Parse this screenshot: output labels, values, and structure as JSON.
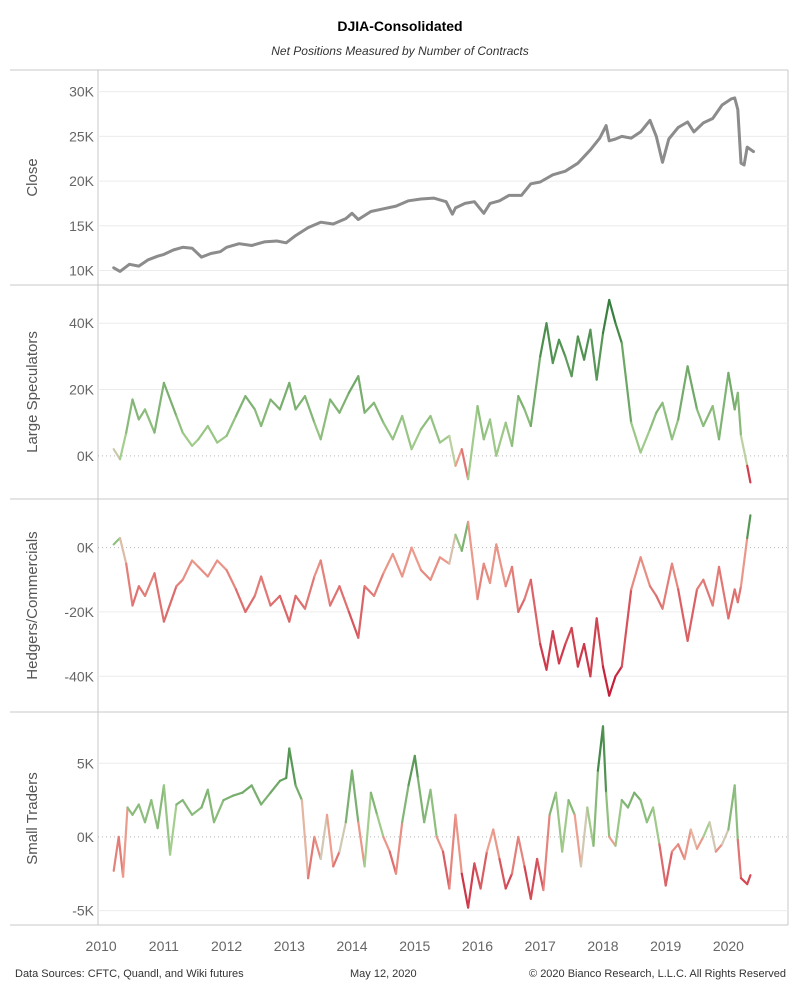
{
  "title": "DJIA-Consolidated",
  "subtitle": "Net Positions Measured by Number of Contracts",
  "footer": {
    "sources": "Data Sources: CFTC, Quandl, and Wiki futures",
    "date": "May 12, 2020",
    "copyright": "© 2020 Bianco Research, L.L.C. All Rights Reserved"
  },
  "x_axis": {
    "labels": [
      "2010",
      "2011",
      "2012",
      "2013",
      "2014",
      "2015",
      "2016",
      "2017",
      "2018",
      "2019",
      "2020"
    ],
    "values": [
      2010,
      2011,
      2012,
      2013,
      2014,
      2015,
      2016,
      2017,
      2018,
      2019,
      2020
    ],
    "range": [
      2009.95,
      2020.95
    ]
  },
  "chart_data": [
    {
      "type": "line",
      "ylabel": "Close",
      "ylim": [
        9500,
        31300
      ],
      "yticks": [
        10000,
        15000,
        20000,
        25000,
        30000
      ],
      "yticklabels": [
        "10K",
        "15K",
        "20K",
        "25K",
        "30K"
      ],
      "color": "#8c8c8c",
      "x": [
        2010.2,
        2010.3,
        2010.45,
        2010.6,
        2010.75,
        2010.9,
        2011.0,
        2011.15,
        2011.3,
        2011.45,
        2011.6,
        2011.75,
        2011.9,
        2012.0,
        2012.2,
        2012.4,
        2012.6,
        2012.8,
        2012.95,
        2013.1,
        2013.3,
        2013.5,
        2013.7,
        2013.9,
        2014.0,
        2014.1,
        2014.3,
        2014.5,
        2014.7,
        2014.9,
        2015.1,
        2015.3,
        2015.5,
        2015.6,
        2015.65,
        2015.8,
        2015.95,
        2016.1,
        2016.2,
        2016.35,
        2016.5,
        2016.7,
        2016.85,
        2017.0,
        2017.2,
        2017.4,
        2017.6,
        2017.8,
        2017.95,
        2018.05,
        2018.1,
        2018.2,
        2018.3,
        2018.45,
        2018.6,
        2018.75,
        2018.85,
        2018.95,
        2019.05,
        2019.2,
        2019.35,
        2019.45,
        2019.6,
        2019.75,
        2019.9,
        2020.05,
        2020.1,
        2020.15,
        2020.2,
        2020.25,
        2020.3,
        2020.4
      ],
      "values": [
        10300,
        9900,
        10700,
        10500,
        11200,
        11600,
        11800,
        12300,
        12600,
        12500,
        11500,
        11900,
        12100,
        12600,
        13000,
        12800,
        13200,
        13300,
        13100,
        13900,
        14800,
        15400,
        15200,
        15800,
        16400,
        15700,
        16600,
        16900,
        17200,
        17800,
        18000,
        18100,
        17700,
        16300,
        17000,
        17500,
        17700,
        16400,
        17500,
        17800,
        18400,
        18400,
        19700,
        19900,
        20700,
        21100,
        22000,
        23500,
        24800,
        26200,
        24500,
        24700,
        25000,
        24800,
        25500,
        26800,
        25000,
        22100,
        24700,
        26000,
        26600,
        25500,
        26500,
        27000,
        28500,
        29200,
        29300,
        28000,
        22000,
        21800,
        23800,
        23300
      ]
    },
    {
      "type": "line",
      "ylabel": "Large Speculators",
      "ylim": [
        -10000,
        48500
      ],
      "yticks": [
        0,
        20000,
        40000
      ],
      "yticklabels": [
        "0K",
        "20K",
        "40K"
      ],
      "x": [
        2010.2,
        2010.3,
        2010.4,
        2010.5,
        2010.6,
        2010.7,
        2010.85,
        2011.0,
        2011.2,
        2011.3,
        2011.45,
        2011.55,
        2011.7,
        2011.85,
        2012.0,
        2012.15,
        2012.3,
        2012.45,
        2012.55,
        2012.7,
        2012.85,
        2013.0,
        2013.1,
        2013.25,
        2013.4,
        2013.5,
        2013.65,
        2013.8,
        2013.95,
        2014.1,
        2014.2,
        2014.35,
        2014.5,
        2014.65,
        2014.8,
        2014.95,
        2015.1,
        2015.25,
        2015.4,
        2015.55,
        2015.65,
        2015.75,
        2015.85,
        2016.0,
        2016.1,
        2016.2,
        2016.3,
        2016.45,
        2016.55,
        2016.65,
        2016.75,
        2016.85,
        2017.0,
        2017.1,
        2017.2,
        2017.3,
        2017.4,
        2017.5,
        2017.6,
        2017.7,
        2017.8,
        2017.9,
        2018.0,
        2018.1,
        2018.2,
        2018.3,
        2018.45,
        2018.6,
        2018.75,
        2018.85,
        2018.95,
        2019.1,
        2019.2,
        2019.35,
        2019.5,
        2019.6,
        2019.75,
        2019.85,
        2020.0,
        2020.1,
        2020.15,
        2020.2,
        2020.3,
        2020.35
      ],
      "values": [
        2000,
        -1000,
        7000,
        17000,
        11000,
        14000,
        7000,
        22000,
        12000,
        7000,
        3000,
        5000,
        9000,
        4000,
        6000,
        12000,
        18000,
        14000,
        9000,
        17000,
        14000,
        22000,
        14000,
        18000,
        10000,
        5000,
        17000,
        13000,
        19000,
        24000,
        13000,
        16000,
        10000,
        5000,
        12000,
        2000,
        8000,
        12000,
        4000,
        6000,
        -3000,
        2000,
        -7000,
        15000,
        5000,
        11000,
        0,
        10000,
        3000,
        18000,
        14000,
        9000,
        30000,
        40000,
        28000,
        35000,
        30000,
        24000,
        36000,
        29000,
        38000,
        23000,
        37000,
        47000,
        40000,
        34000,
        10000,
        1000,
        8000,
        13000,
        16000,
        5000,
        11000,
        27000,
        14000,
        9000,
        15000,
        5000,
        25000,
        14000,
        19000,
        6000,
        -3000,
        -8000
      ]
    },
    {
      "type": "line",
      "ylabel": "Hedgers/Commercials",
      "ylim": [
        -48000,
        12000
      ],
      "yticks": [
        -40000,
        -20000,
        0
      ],
      "yticklabels": [
        "-40K",
        "-20K",
        "0K"
      ],
      "x": [
        2010.2,
        2010.3,
        2010.4,
        2010.5,
        2010.6,
        2010.7,
        2010.85,
        2011.0,
        2011.2,
        2011.3,
        2011.45,
        2011.55,
        2011.7,
        2011.85,
        2012.0,
        2012.15,
        2012.3,
        2012.45,
        2012.55,
        2012.7,
        2012.85,
        2013.0,
        2013.1,
        2013.25,
        2013.4,
        2013.5,
        2013.65,
        2013.8,
        2013.95,
        2014.1,
        2014.2,
        2014.35,
        2014.5,
        2014.65,
        2014.8,
        2014.95,
        2015.1,
        2015.25,
        2015.4,
        2015.55,
        2015.65,
        2015.75,
        2015.85,
        2016.0,
        2016.1,
        2016.2,
        2016.3,
        2016.45,
        2016.55,
        2016.65,
        2016.75,
        2016.85,
        2017.0,
        2017.1,
        2017.2,
        2017.3,
        2017.4,
        2017.5,
        2017.6,
        2017.7,
        2017.8,
        2017.9,
        2018.0,
        2018.1,
        2018.2,
        2018.3,
        2018.45,
        2018.6,
        2018.75,
        2018.85,
        2018.95,
        2019.1,
        2019.2,
        2019.35,
        2019.5,
        2019.6,
        2019.75,
        2019.85,
        2020.0,
        2020.1,
        2020.15,
        2020.2,
        2020.3,
        2020.35
      ],
      "values": [
        1000,
        3000,
        -5000,
        -18000,
        -12000,
        -15000,
        -8000,
        -23000,
        -12000,
        -10000,
        -4000,
        -6000,
        -9000,
        -4000,
        -7000,
        -13000,
        -20000,
        -15000,
        -9000,
        -18000,
        -15000,
        -23000,
        -15000,
        -19000,
        -9000,
        -4000,
        -18000,
        -12000,
        -20000,
        -28000,
        -12000,
        -15000,
        -8000,
        -2000,
        -9000,
        0,
        -7000,
        -10000,
        -3000,
        -5000,
        4000,
        -1000,
        8000,
        -16000,
        -5000,
        -11000,
        1000,
        -12000,
        -6000,
        -20000,
        -16000,
        -10000,
        -30000,
        -38000,
        -26000,
        -36000,
        -30000,
        -25000,
        -37000,
        -30000,
        -40000,
        -22000,
        -37000,
        -46000,
        -40000,
        -37000,
        -13000,
        -3000,
        -12000,
        -15000,
        -19000,
        -5000,
        -13000,
        -29000,
        -13000,
        -10000,
        -18000,
        -6000,
        -22000,
        -13000,
        -17000,
        -12000,
        3000,
        10000
      ]
    },
    {
      "type": "line",
      "ylabel": "Small Traders",
      "ylim": [
        -5300,
        7800
      ],
      "yticks": [
        -5000,
        0,
        5000
      ],
      "yticklabels": [
        "-5K",
        "0K",
        "5K"
      ],
      "x": [
        2010.2,
        2010.28,
        2010.35,
        2010.42,
        2010.5,
        2010.6,
        2010.7,
        2010.8,
        2010.9,
        2011.0,
        2011.1,
        2011.2,
        2011.3,
        2011.45,
        2011.6,
        2011.7,
        2011.8,
        2011.95,
        2012.1,
        2012.25,
        2012.4,
        2012.55,
        2012.7,
        2012.85,
        2012.95,
        2013.0,
        2013.1,
        2013.2,
        2013.3,
        2013.4,
        2013.5,
        2013.6,
        2013.7,
        2013.8,
        2013.9,
        2014.0,
        2014.1,
        2014.2,
        2014.3,
        2014.4,
        2014.5,
        2014.6,
        2014.7,
        2014.8,
        2014.9,
        2015.0,
        2015.05,
        2015.15,
        2015.25,
        2015.35,
        2015.45,
        2015.55,
        2015.65,
        2015.75,
        2015.85,
        2015.95,
        2016.05,
        2016.15,
        2016.25,
        2016.35,
        2016.45,
        2016.55,
        2016.65,
        2016.75,
        2016.85,
        2016.95,
        2017.05,
        2017.15,
        2017.25,
        2017.35,
        2017.45,
        2017.55,
        2017.65,
        2017.75,
        2017.85,
        2017.92,
        2018.0,
        2018.05,
        2018.1,
        2018.2,
        2018.3,
        2018.4,
        2018.5,
        2018.6,
        2018.7,
        2018.8,
        2018.9,
        2019.0,
        2019.1,
        2019.2,
        2019.3,
        2019.4,
        2019.5,
        2019.6,
        2019.7,
        2019.8,
        2019.9,
        2020.0,
        2020.1,
        2020.15,
        2020.2,
        2020.3,
        2020.35
      ],
      "values": [
        -2300,
        0,
        -2700,
        2000,
        1500,
        2200,
        1000,
        2500,
        600,
        3500,
        -1200,
        2200,
        2500,
        1500,
        2000,
        3200,
        1000,
        2500,
        2800,
        3000,
        3500,
        2200,
        3000,
        3800,
        4000,
        6000,
        3500,
        2500,
        -2800,
        0,
        -1500,
        1500,
        -2000,
        -1000,
        1000,
        4500,
        1000,
        -2000,
        3000,
        1500,
        0,
        -1000,
        -2500,
        1000,
        3500,
        5500,
        4000,
        1000,
        3200,
        0,
        -1000,
        -3500,
        1500,
        -2500,
        -4800,
        -1800,
        -3500,
        -1000,
        500,
        -1500,
        -3500,
        -2500,
        0,
        -2000,
        -4200,
        -1500,
        -3600,
        1500,
        3000,
        -1000,
        2500,
        1500,
        -2000,
        2000,
        -600,
        4500,
        7500,
        3000,
        0,
        -600,
        2500,
        2000,
        3000,
        2500,
        1000,
        2000,
        -500,
        -3300,
        -1000,
        -500,
        -1500,
        500,
        -800,
        0,
        1000,
        -1000,
        -500,
        500,
        3500,
        -200,
        -2800,
        -3200,
        -2600
      ]
    }
  ]
}
